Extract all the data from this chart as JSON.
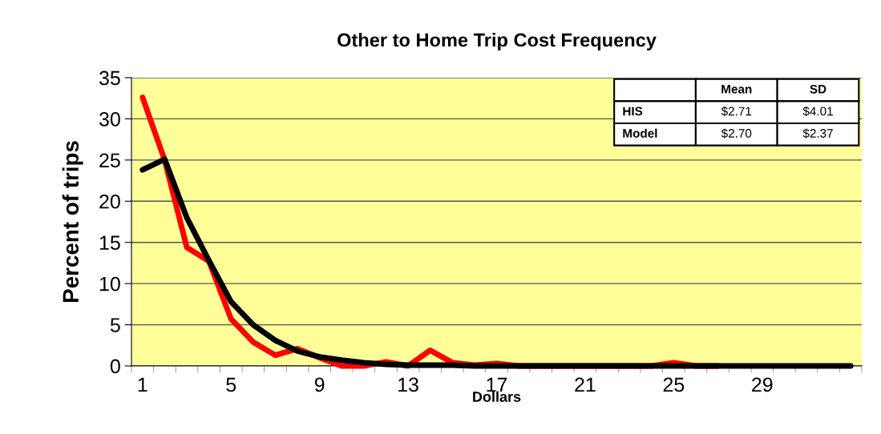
{
  "chart_data": {
    "type": "line",
    "title": "Other to Home Trip Cost Frequency",
    "xlabel": "Dollars",
    "ylabel": "Percent of trips",
    "categories": [
      "1",
      null,
      null,
      null,
      "5",
      null,
      null,
      null,
      "9",
      null,
      null,
      null,
      "13",
      null,
      null,
      null,
      "17",
      null,
      null,
      null,
      "21",
      null,
      null,
      null,
      "25",
      null,
      null,
      null,
      "29",
      null,
      null,
      null,
      null
    ],
    "series": [
      {
        "color": "#ff0000",
        "values": [
          32.6,
          25,
          14.4,
          12.7,
          5.7,
          2.9,
          1.3,
          2.1,
          1.0,
          0,
          0,
          0.5,
          0,
          1.9,
          0.4,
          0.1,
          0.3,
          0,
          0,
          0,
          0,
          0,
          0,
          0,
          0.4,
          0,
          0,
          null,
          null,
          null,
          null,
          null,
          null
        ]
      },
      {
        "color": "#000000",
        "values": [
          23.8,
          25.1,
          18.0,
          12.8,
          7.8,
          5.0,
          3.1,
          1.8,
          1.1,
          0.7,
          0.4,
          0.2,
          0.1,
          0.1,
          0.1,
          0,
          0,
          0,
          0,
          0,
          0,
          0,
          0,
          0,
          0,
          0,
          0,
          0,
          0,
          0,
          0,
          0,
          0
        ]
      }
    ],
    "ylim": [
      0,
      35
    ],
    "yticks": [
      0,
      5,
      10,
      15,
      20,
      25,
      30,
      35
    ],
    "grid": "y",
    "legend": false,
    "marker": "none",
    "line_style": "solid",
    "annotations": [
      "Mean",
      "SD",
      "HIS",
      "$2.71",
      "$4.01",
      "Model",
      "$2.70",
      "$2.37"
    ]
  }
}
